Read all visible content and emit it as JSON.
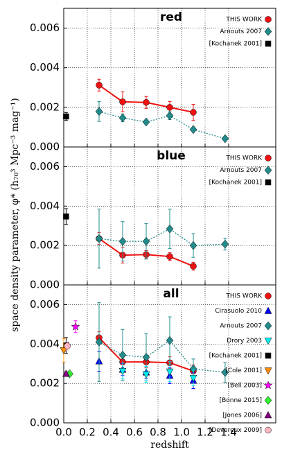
{
  "chart_data": [
    {
      "type": "line",
      "title": "red",
      "xlim": [
        0,
        1.8
      ],
      "xticks": [
        0,
        0.2,
        0.4,
        0.6,
        0.8,
        1.0,
        1.2,
        1.4
      ],
      "ylim": [
        0,
        0.007
      ],
      "yticks": [
        {
          "value": 0,
          "label": "0.000"
        },
        0.002,
        0.004,
        0.006
      ],
      "grid": true,
      "legend": "upper right",
      "series": [
        {
          "name": "THIS WORK",
          "color": "#ee1111",
          "marker": "circle",
          "linestyle": "solid",
          "x": [
            0.3,
            0.5,
            0.7,
            0.9,
            1.1
          ],
          "values": [
            0.00312,
            0.00228,
            0.00225,
            0.002,
            0.00175
          ],
          "errors": [
            0.0003,
            0.0005,
            0.0003,
            0.0003,
            0.0004
          ]
        },
        {
          "name": "Arnouts 2007",
          "color": "#238b8b",
          "marker": "diamond",
          "linestyle": "dotted",
          "x": [
            0.3,
            0.5,
            0.7,
            0.9,
            1.1,
            1.37
          ],
          "values": [
            0.00179,
            0.00147,
            0.00126,
            0.00158,
            0.00088,
            0.00042
          ],
          "errors": [
            0.0005,
            0.0002,
            0.0001,
            0.0002,
            0.0001,
            0.0001
          ]
        },
        {
          "name": "[Kochanek 2001]",
          "color": "#000000",
          "marker": "square",
          "linestyle": "none",
          "x": [
            0.02
          ],
          "values": [
            0.00154
          ],
          "errors": [
            0.0002
          ]
        }
      ]
    },
    {
      "type": "line",
      "title": "blue",
      "ylabel": "space density parameter, φ* (h₇₀³ Mpc⁻³ mag⁻¹)",
      "xlim": [
        0,
        1.8
      ],
      "xticks": [
        0,
        0.2,
        0.4,
        0.6,
        0.8,
        1.0,
        1.2,
        1.4
      ],
      "ylim": [
        0,
        0.007
      ],
      "yticks": [
        {
          "value": 0,
          "label": "0.000"
        },
        0.002,
        0.004,
        0.006
      ],
      "grid": true,
      "legend": "upper right",
      "series": [
        {
          "name": "THIS WORK",
          "color": "#ee1111",
          "marker": "circle",
          "linestyle": "solid",
          "x": [
            0.3,
            0.5,
            0.7,
            0.9,
            1.1
          ],
          "values": [
            0.00235,
            0.00151,
            0.00154,
            0.00144,
            0.00095
          ],
          "errors": [
            0.0003,
            0.0004,
            0.0002,
            0.0002,
            0.0002
          ]
        },
        {
          "name": "Arnouts 2007",
          "color": "#238b8b",
          "marker": "diamond",
          "linestyle": "dotted",
          "x": [
            0.3,
            0.5,
            0.7,
            0.9,
            1.1,
            1.37
          ],
          "values": [
            0.00235,
            0.00221,
            0.00221,
            0.00284,
            0.002,
            0.00207
          ],
          "errors": [
            0.0015,
            0.001,
            0.0009,
            0.001,
            0.0006,
            0.0003
          ]
        },
        {
          "name": "[Kochanek 2001]",
          "color": "#000000",
          "marker": "square",
          "linestyle": "none",
          "x": [
            0.02
          ],
          "values": [
            0.00347
          ],
          "errors": [
            0.0004
          ]
        }
      ]
    },
    {
      "type": "line",
      "title": "all",
      "xlabel": "redshift",
      "xlim": [
        0,
        1.8
      ],
      "xticks": [
        {
          "value": 0,
          "label": "0.0"
        },
        {
          "value": 0.2,
          "label": "0.2"
        },
        {
          "value": 0.4,
          "label": "0.4"
        },
        {
          "value": 0.6,
          "label": "0.6"
        },
        {
          "value": 0.8,
          "label": "0.8"
        },
        {
          "value": 1.0,
          "label": "1.0"
        },
        {
          "value": 1.2,
          "label": "1.2"
        },
        {
          "value": 1.4,
          "label": "1.4"
        }
      ],
      "ylim": [
        0,
        0.007
      ],
      "yticks": [
        {
          "value": 0,
          "label": "0.000"
        },
        0.002,
        0.004,
        0.006
      ],
      "grid": true,
      "legend": "upper right",
      "series": [
        {
          "name": "THIS WORK",
          "color": "#ee1111",
          "marker": "circle",
          "linestyle": "solid",
          "x": [
            0.3,
            0.5,
            0.7,
            0.9,
            1.1
          ],
          "values": [
            0.00432,
            0.00309,
            0.00309,
            0.00305,
            0.00263
          ],
          "errors": [
            0.0003,
            0.0004,
            0.0003,
            0.0003,
            0.0003
          ]
        },
        {
          "name": "Cirasuolo 2010",
          "color": "#0000ff",
          "marker": "triangle-up",
          "linestyle": "none",
          "x": [
            0.3,
            0.5,
            0.7,
            0.9,
            1.1
          ],
          "values": [
            0.00312,
            0.0027,
            0.00256,
            0.00239,
            0.00214
          ],
          "errors": [
            0.0005,
            0.0003,
            0.0003,
            0.0004,
            0.0004
          ]
        },
        {
          "name": "Arnouts 2007",
          "color": "#238b8b",
          "marker": "diamond",
          "linestyle": "dotted",
          "x": [
            0.3,
            0.5,
            0.7,
            0.9,
            1.1,
            1.37
          ],
          "values": [
            0.0041,
            0.00344,
            0.00333,
            0.00418,
            0.00274,
            0.00256
          ],
          "errors": [
            0.002,
            0.0013,
            0.0012,
            0.0012,
            0.0005,
            0.0005
          ]
        },
        {
          "name": "Drory 2003",
          "color": "#00eeee",
          "marker": "triangle-down",
          "linestyle": "none",
          "x": [
            0.5,
            0.7,
            0.9,
            1.1
          ],
          "values": [
            0.00263,
            0.00246,
            0.0026,
            0.00228
          ],
          "errors": [
            0.0004,
            0.0004,
            0.0005,
            0.0004
          ]
        },
        {
          "name": "[Kochanek 2001]",
          "color": "#000000",
          "marker": "square",
          "linestyle": "none",
          "x": [
            0.02
          ],
          "values": [
            0.00393
          ],
          "errors": [
            0.0004
          ]
        },
        {
          "name": "[Cole 2001]",
          "color": "#ff8c00",
          "marker": "triangle-down",
          "linestyle": "none",
          "x": [
            0.0
          ],
          "values": [
            0.00368
          ],
          "errors": [
            0.0006
          ]
        },
        {
          "name": "[Bell 2003]",
          "color": "#ff00ff",
          "marker": "star",
          "linestyle": "none",
          "x": [
            0.1
          ],
          "values": [
            0.00488
          ],
          "errors": [
            0.0003
          ]
        },
        {
          "name": "[Bonne 2015]",
          "color": "#33ee33",
          "marker": "diamond",
          "linestyle": "none",
          "x": [
            0.05
          ],
          "values": [
            0.00249
          ],
          "errors": [
            0.0001
          ]
        },
        {
          "name": "[Jones 2006]",
          "color": "#800080",
          "marker": "triangle-up",
          "linestyle": "none",
          "x": [
            0.02
          ],
          "values": [
            0.00249
          ],
          "errors": [
            0.0001
          ]
        },
        {
          "name": "[Devereux 2009]",
          "color": "#ffb6c1",
          "marker": "circle",
          "linestyle": "none",
          "x": [
            0.03
          ],
          "values": [
            0.0039
          ],
          "errors": [
            0.0002
          ]
        }
      ]
    }
  ]
}
